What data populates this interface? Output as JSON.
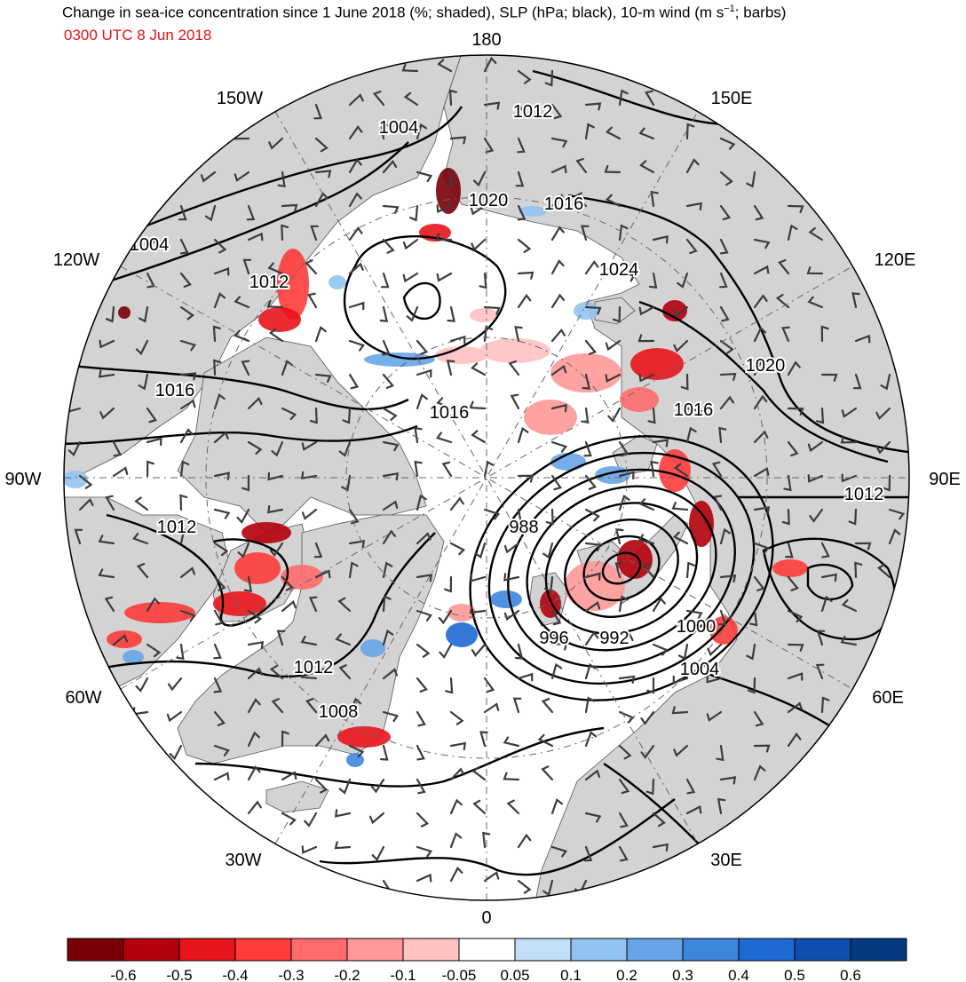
{
  "header": {
    "title_main": "Change in sea-ice concentration since 1 June 2018 (%; shaded), SLP (hPa; black), 10-m wind (m s",
    "title_sup": "−1",
    "title_tail": "; barbs)",
    "subtitle": "0300 UTC 8 Jun 2018",
    "subtitle_color": "#e8121a"
  },
  "colors": {
    "land": "#d3d3d3",
    "ocean": "#ffffff",
    "contour": "#000000",
    "barb": "#3c3c3c"
  },
  "longitude_labels": [
    {
      "id": "180",
      "text": "180"
    },
    {
      "id": "150e",
      "text": "150E"
    },
    {
      "id": "120e",
      "text": "120E"
    },
    {
      "id": "90e",
      "text": "90E"
    },
    {
      "id": "60e",
      "text": "60E"
    },
    {
      "id": "30e",
      "text": "30E"
    },
    {
      "id": "0",
      "text": "0"
    },
    {
      "id": "30w",
      "text": "30W"
    },
    {
      "id": "60w",
      "text": "60W"
    },
    {
      "id": "90w",
      "text": "90W"
    },
    {
      "id": "120w",
      "text": "120W"
    },
    {
      "id": "150w",
      "text": "150W"
    }
  ],
  "slp_labels": [
    {
      "id": "a",
      "text": "1004"
    },
    {
      "id": "b",
      "text": "1012"
    },
    {
      "id": "c",
      "text": "1020"
    },
    {
      "id": "d",
      "text": "1016"
    },
    {
      "id": "e",
      "text": "1004"
    },
    {
      "id": "f",
      "text": "1012"
    },
    {
      "id": "g",
      "text": "1024"
    },
    {
      "id": "h",
      "text": "1020"
    },
    {
      "id": "i",
      "text": "1016"
    },
    {
      "id": "j",
      "text": "1016"
    },
    {
      "id": "k",
      "text": "1016"
    },
    {
      "id": "l",
      "text": "1012"
    },
    {
      "id": "m",
      "text": "1012"
    },
    {
      "id": "n",
      "text": "988"
    },
    {
      "id": "o",
      "text": "996"
    },
    {
      "id": "p",
      "text": "992"
    },
    {
      "id": "q",
      "text": "1000"
    },
    {
      "id": "r",
      "text": "1004"
    },
    {
      "id": "s",
      "text": "1012"
    },
    {
      "id": "t",
      "text": "1008"
    }
  ],
  "colorbar": {
    "colors": [
      "#7a0006",
      "#b3000c",
      "#e8141c",
      "#ff3b3b",
      "#ff6b6b",
      "#ff9898",
      "#ffc2c2",
      "#ffffff",
      "#c2dffa",
      "#93c3f1",
      "#67a5e8",
      "#3d86de",
      "#1e68d2",
      "#0d4fae",
      "#063a80"
    ],
    "labels": [
      "-0.6",
      "-0.5",
      "-0.4",
      "-0.3",
      "-0.2",
      "-0.1",
      "-0.05",
      "0.05",
      "0.1",
      "0.2",
      "0.3",
      "0.4",
      "0.5",
      "0.6"
    ]
  }
}
